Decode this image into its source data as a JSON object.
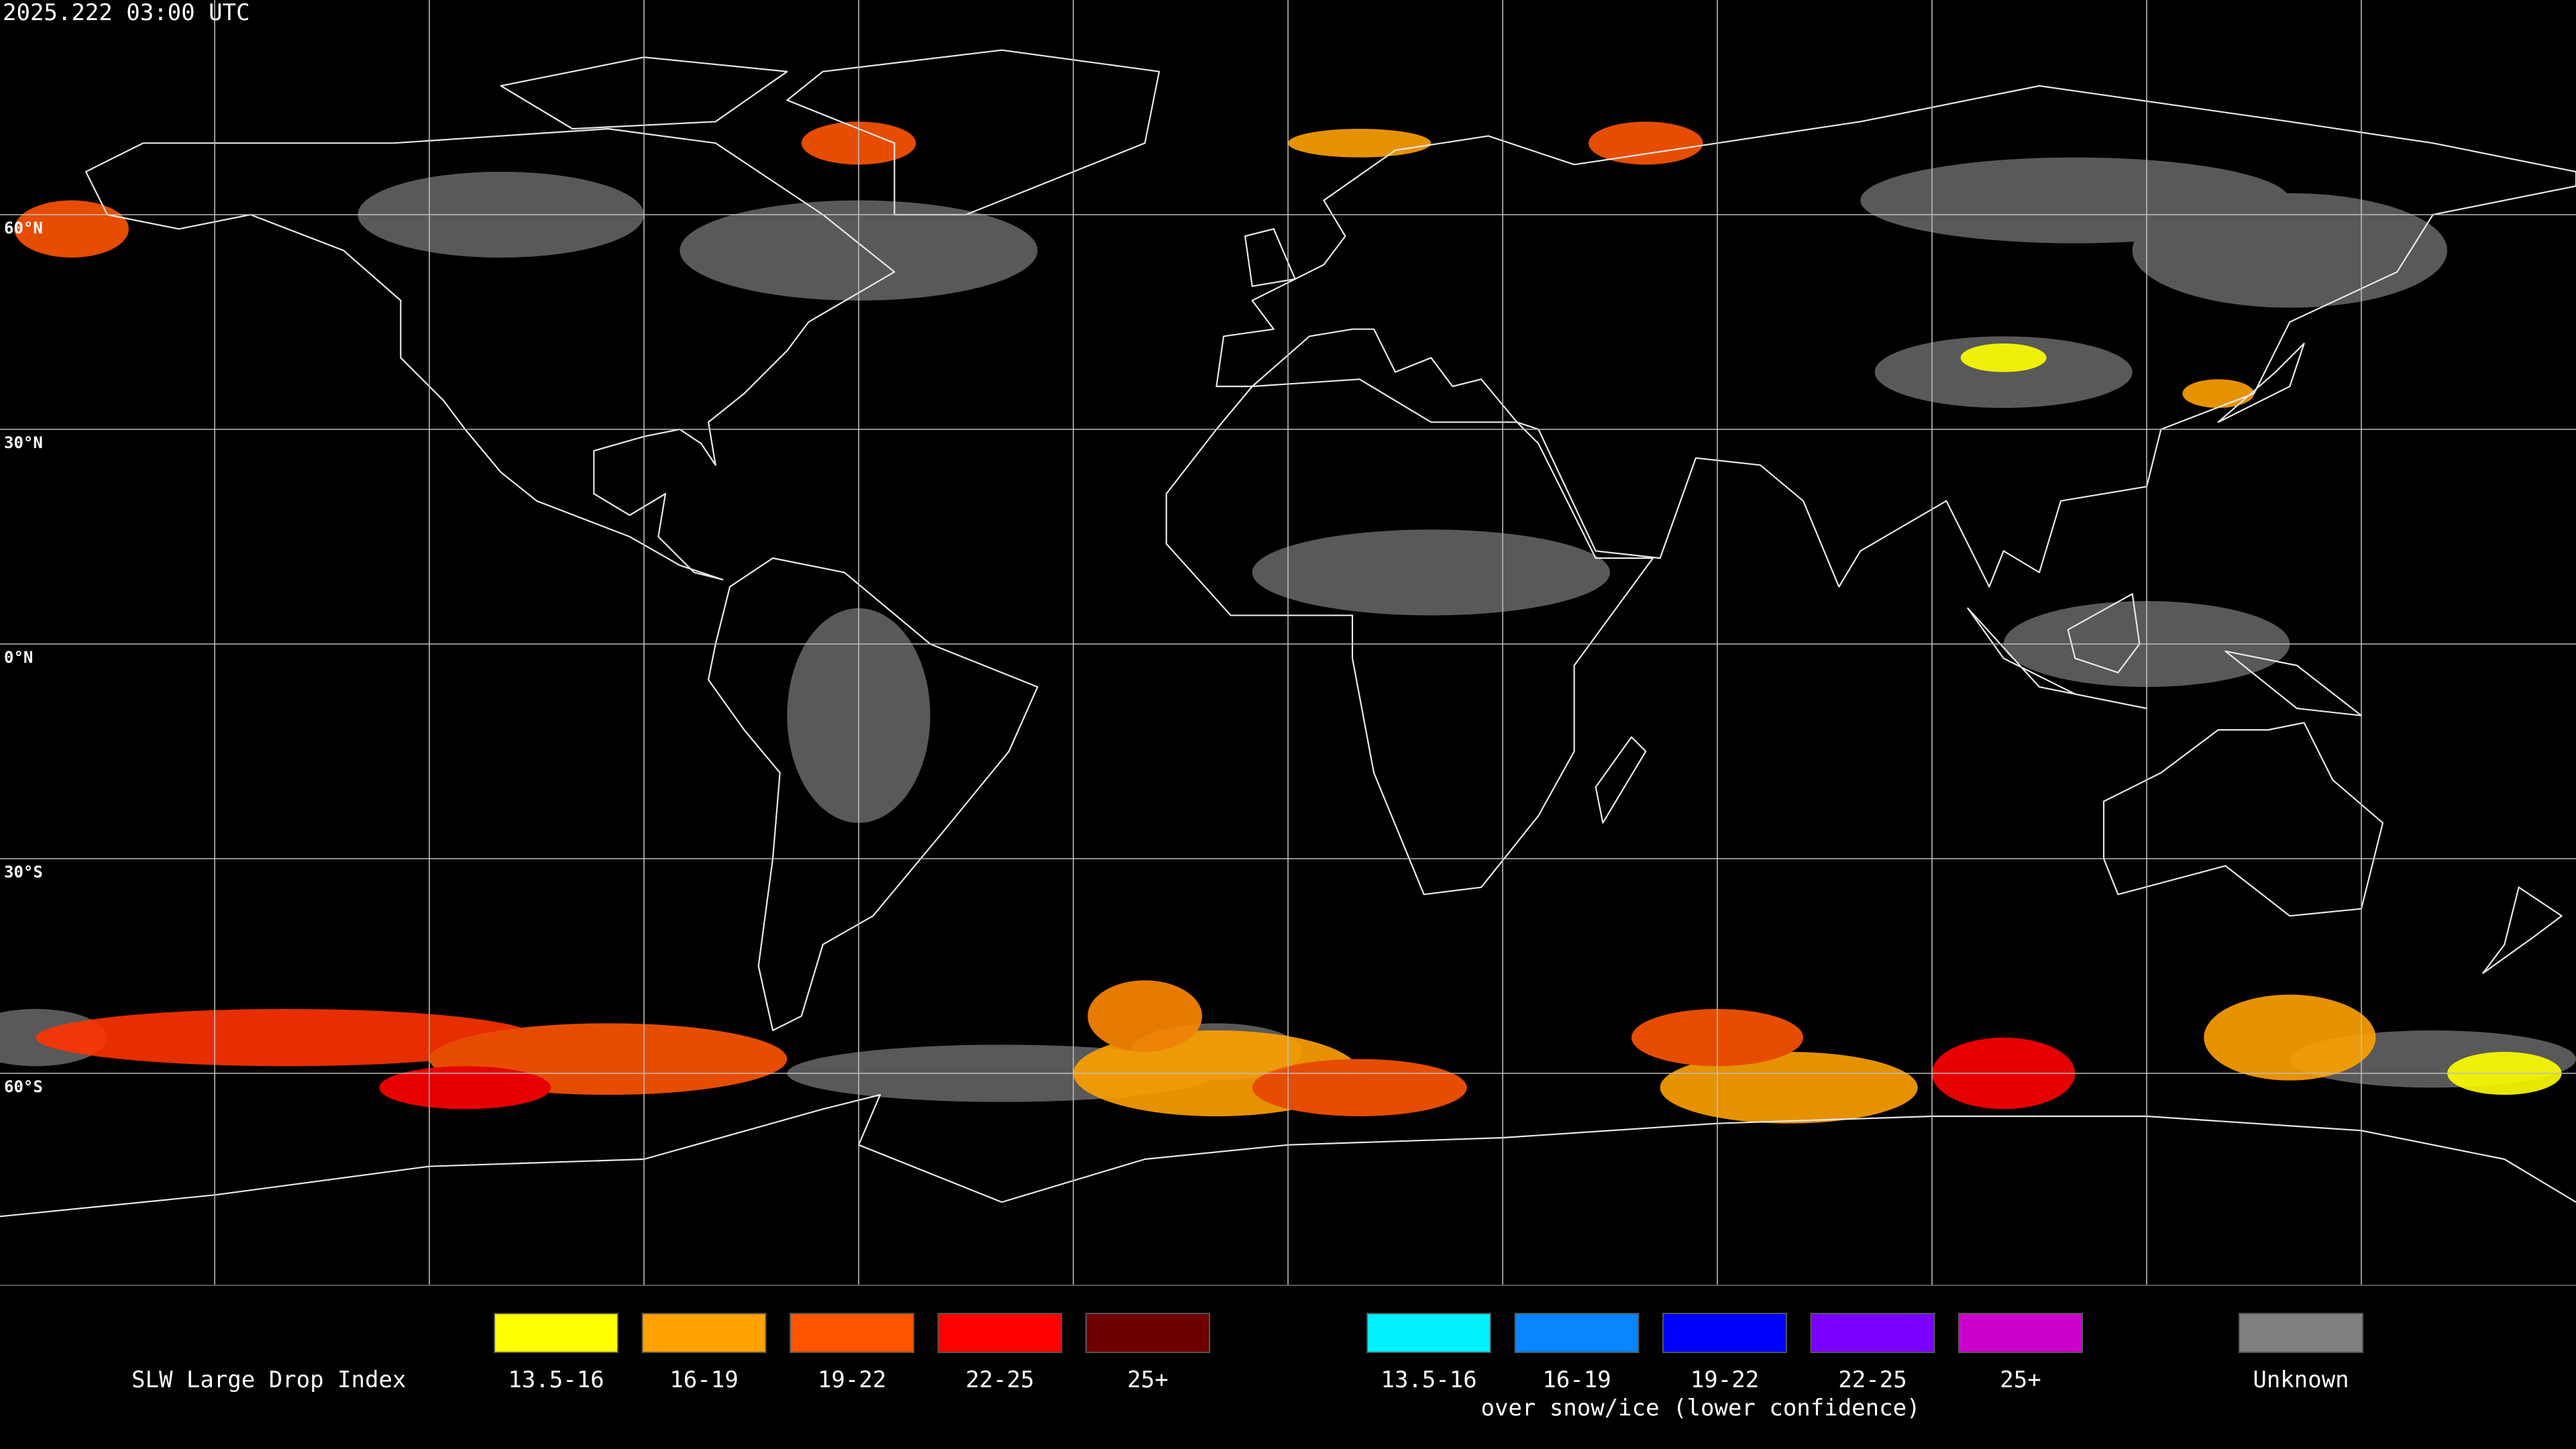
{
  "header": {
    "title": "2025.222 03:00 UTC"
  },
  "map": {
    "latitude_labels": [
      "60°N",
      "30°N",
      "0°N",
      "30°S",
      "60°S"
    ]
  },
  "legend": {
    "title": "SLW Large Drop Index",
    "items": [
      {
        "label": "13.5-16",
        "color": "#ffff00"
      },
      {
        "label": "16-19",
        "color": "#ffa200"
      },
      {
        "label": "19-22",
        "color": "#ff5500"
      },
      {
        "label": "22-25",
        "color": "#ff0000"
      },
      {
        "label": "25+",
        "color": "#6e0000"
      }
    ],
    "snow_ice_items": [
      {
        "label": "13.5-16",
        "color": "#00f0ff"
      },
      {
        "label": "16-19",
        "color": "#0a84ff"
      },
      {
        "label": "19-22",
        "color": "#0000ff"
      },
      {
        "label": "22-25",
        "color": "#7a00ff"
      },
      {
        "label": "25+",
        "color": "#cc00cc"
      }
    ],
    "snow_ice_caption": "over snow/ice (lower confidence)",
    "unknown": {
      "label": "Unknown",
      "color": "#808080"
    }
  }
}
